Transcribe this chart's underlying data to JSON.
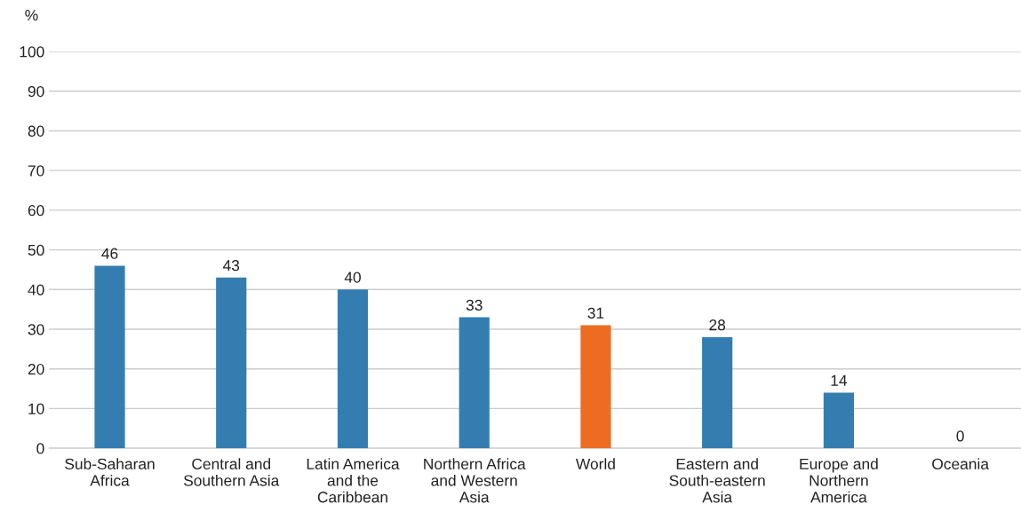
{
  "chart_data": {
    "type": "bar",
    "categories": [
      "Sub-Saharan\nAfrica",
      "Central and\nSouthern Asia",
      "Latin America\nand the\nCaribbean",
      "Northern Africa\nand Western\nAsia",
      "World",
      "Eastern and\nSouth-eastern\nAsia",
      "Europe and\nNorthern\nAmerica",
      "Oceania"
    ],
    "values": [
      46,
      43,
      40,
      33,
      31,
      28,
      14,
      0
    ],
    "colors": [
      "#347db0",
      "#347db0",
      "#347db0",
      "#347db0",
      "#ee6c22",
      "#347db0",
      "#347db0",
      "#347db0"
    ],
    "ylabel": "%",
    "ylim": [
      0,
      100
    ],
    "yticks": [
      0,
      10,
      20,
      30,
      40,
      50,
      60,
      70,
      80,
      90,
      100
    ],
    "grid": "y",
    "data_labels": true
  }
}
